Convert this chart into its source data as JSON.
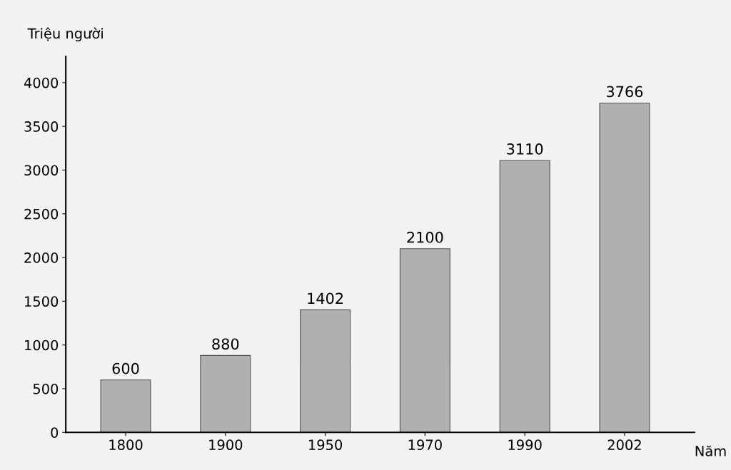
{
  "chart_data": {
    "type": "bar",
    "ylabel": "Triệu người",
    "xlabel": "Năm",
    "categories": [
      "1800",
      "1900",
      "1950",
      "1970",
      "1990",
      "2002"
    ],
    "values": [
      600,
      880,
      1402,
      2100,
      3110,
      3766
    ],
    "color": "#b0b0b0",
    "ylim": [
      0,
      4300
    ],
    "yticks": [
      0,
      500,
      1000,
      1500,
      2000,
      2500,
      3000,
      3500,
      4000
    ],
    "data_labels": true,
    "grid": false
  }
}
